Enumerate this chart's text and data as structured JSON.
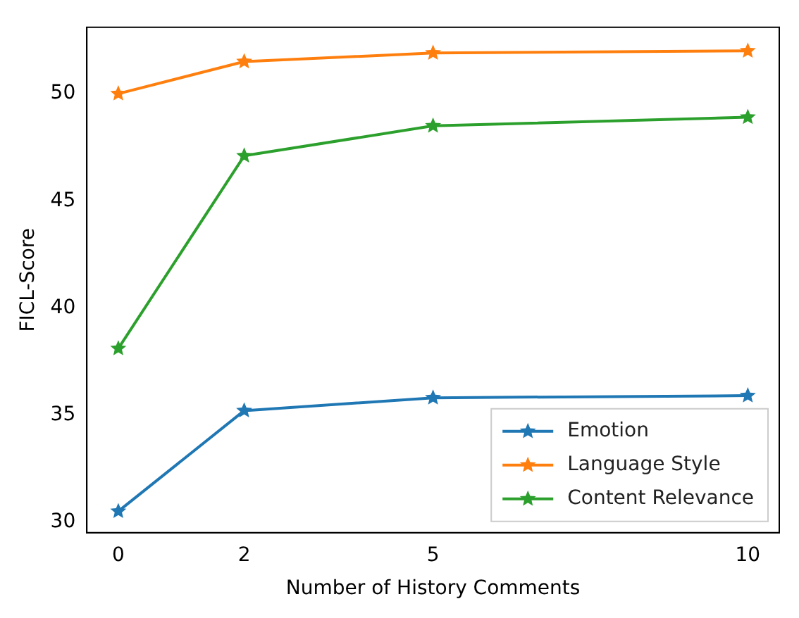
{
  "chart_data": {
    "type": "line",
    "xlabel": "Number of History Comments",
    "ylabel": "FICL-Score",
    "x": [
      0,
      2,
      5,
      10
    ],
    "xlim": [
      -0.5,
      10.5
    ],
    "xticks": [
      0,
      2,
      5,
      10
    ],
    "ylim": [
      29.5,
      53.1
    ],
    "yticks": [
      30,
      35,
      40,
      45,
      50
    ],
    "grid": false,
    "legend": "bottom right",
    "marker": "star",
    "line_style": "solid",
    "series": [
      {
        "name": "Emotion",
        "color": "#1f77b4",
        "values": [
          30.5,
          35.2,
          35.8,
          35.9
        ]
      },
      {
        "name": "Language Style",
        "color": "#ff7f0e",
        "values": [
          50,
          51.5,
          51.9,
          52.0
        ]
      },
      {
        "name": "Content Relevance",
        "color": "#2ca02c",
        "values": [
          38.1,
          47.1,
          48.5,
          48.9
        ]
      }
    ]
  }
}
